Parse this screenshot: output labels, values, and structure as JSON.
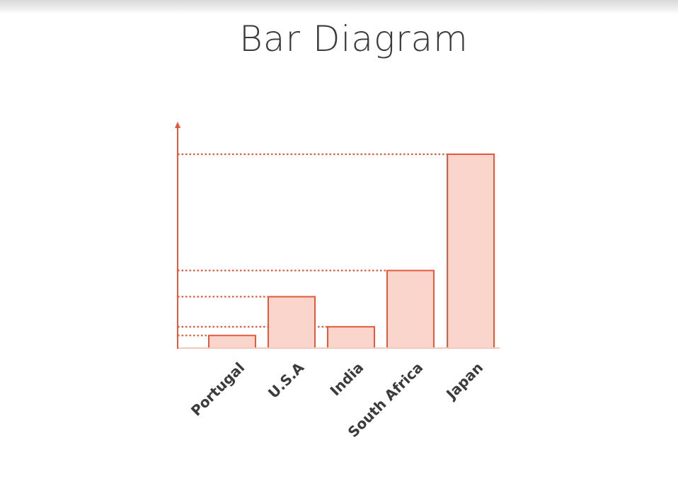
{
  "chart_data": {
    "type": "bar",
    "title": "Bar Diagram",
    "xlabel": "",
    "ylabel": "",
    "categories": [
      "Portugal",
      "U.S.A",
      "India",
      "South Africa",
      "Japan"
    ],
    "values": [
      0.65,
      2.65,
      1.1,
      4.0,
      10.0
    ],
    "ylim": [
      0,
      10.8
    ],
    "grid": false,
    "reference_lines": "dotted",
    "colors": {
      "bar_fill": "#f9d5cc",
      "bar_stroke": "#e25a3b",
      "axis": "#e25a3b",
      "reference_line": "#e25a3b",
      "text": "#3b3b3b"
    }
  }
}
